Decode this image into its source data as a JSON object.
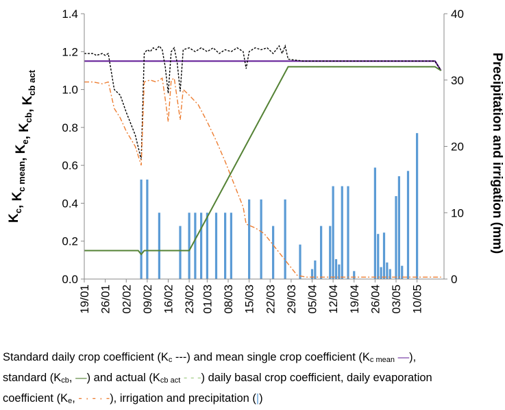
{
  "chart_data": {
    "type": "line",
    "y_label": [
      "K",
      {
        "sub": "c"
      },
      ", K",
      {
        "sub": "c mean"
      },
      ", K",
      {
        "sub": "e"
      },
      ", K",
      {
        "sub": "cb"
      },
      ", K",
      {
        "sub": "cb act"
      }
    ],
    "y2_label": "Precipitation and irrigation (mm)",
    "xlim": [
      "19/01",
      "19/05"
    ],
    "xticks": [
      "19/01",
      "26/01",
      "02/02",
      "09/02",
      "16/02",
      "23/02",
      "01/03",
      "08/03",
      "15/03",
      "22/03",
      "29/03",
      "05/04",
      "12/04",
      "19/04",
      "26/04",
      "03/05",
      "10/05"
    ],
    "ylim": [
      0,
      1.4
    ],
    "yticks": [
      {
        "value": 0,
        "label": "0.0"
      },
      0.2,
      0.4,
      0.6,
      0.8,
      {
        "value": 1,
        "label": "1.0"
      },
      1.2,
      1.4
    ],
    "y2lim": [
      0,
      40
    ],
    "y2ticks": [
      0,
      10,
      20,
      30,
      40
    ],
    "series": [
      {
        "type": "bar",
        "axis": "y2",
        "color": "#5b9bd5",
        "x": [
          "07/02",
          "09/02",
          "13/02",
          "20/02",
          "23/02",
          "25/02",
          "27/02",
          "01/03",
          "04/03",
          "07/03",
          "09/03",
          "15/03",
          "19/03",
          "23/03",
          "27/03",
          "01/04",
          "05/04",
          "06/04",
          "08/04",
          "11/04",
          "12/04",
          "13/04",
          "14/04",
          "15/04",
          "17/04",
          "19/04",
          "26/04",
          "27/04",
          "28/04",
          "29/04",
          "30/04",
          "01/05",
          "03/05",
          "04/05",
          "05/05",
          "07/05",
          "10/05"
        ],
        "values": [
          15,
          15,
          10,
          8,
          10,
          10,
          10,
          10,
          10,
          10,
          10,
          12,
          12,
          8,
          12,
          5.2,
          1.5,
          2.8,
          8,
          8,
          14,
          3,
          2.2,
          14,
          14,
          1.2,
          16.8,
          6.8,
          1.8,
          7,
          2.5,
          1.5,
          12.5,
          15.5,
          2,
          16.3,
          22
        ]
      },
      {
        "type": "line",
        "color": "#7030a0",
        "width": 2.2,
        "dash": "",
        "x": [
          "19/01",
          "16/05",
          "18/05"
        ],
        "values": [
          1.15,
          1.15,
          1.1
        ]
      },
      {
        "type": "line",
        "color": "#000000",
        "width": 1.4,
        "dash": "3 2",
        "x": [
          "19/01",
          "22/01",
          "23/01",
          "25/01",
          "26/01",
          "27/01",
          "29/01",
          "31/01",
          "02/02",
          "05/02",
          "07/02",
          "08/02",
          "09/02",
          "10/02",
          "11/02",
          "12/02",
          "13/02",
          "14/02",
          "15/02",
          "16/02",
          "17/02",
          "18/02",
          "19/02",
          "20/02",
          "21/02",
          "23/02",
          "25/02",
          "27/02",
          "01/03",
          "03/03",
          "05/03",
          "07/03",
          "09/03",
          "11/03",
          "13/03",
          "14/03",
          "15/03",
          "17/03",
          "19/03",
          "21/03",
          "23/03",
          "25/03",
          "26/03",
          "27/03",
          "28/03",
          "02/04",
          "16/05",
          "18/05"
        ],
        "values": [
          1.19,
          1.19,
          1.18,
          1.19,
          1.18,
          1.19,
          1.0,
          0.97,
          0.88,
          0.76,
          0.63,
          1.19,
          1.21,
          1.2,
          1.22,
          1.21,
          1.23,
          1.21,
          1.12,
          0.98,
          1.2,
          1.22,
          1.14,
          0.99,
          1.21,
          1.22,
          1.2,
          1.22,
          1.2,
          1.22,
          1.19,
          1.21,
          1.2,
          1.22,
          1.2,
          1.11,
          1.2,
          1.22,
          1.21,
          1.22,
          1.19,
          1.23,
          1.19,
          1.23,
          1.16,
          1.15,
          1.15,
          1.1
        ]
      },
      {
        "type": "line",
        "color": "#ed7d31",
        "width": 1.4,
        "dash": "7 3 2 3",
        "x": [
          "19/01",
          "22/01",
          "25/01",
          "27/01",
          "29/01",
          "31/01",
          "02/02",
          "05/02",
          "07/02",
          "08/02",
          "10/02",
          "12/02",
          "14/02",
          "15/02",
          "16/02",
          "17/02",
          "18/02",
          "19/02",
          "20/02",
          "21/02",
          "23/02",
          "26/02",
          "01/03",
          "04/03",
          "07/03",
          "10/03",
          "13/03",
          "14/03",
          "17/03",
          "20/03",
          "22/03",
          "25/03",
          "28/03",
          "31/03",
          "03/04",
          "16/05",
          "18/05"
        ],
        "values": [
          1.04,
          1.04,
          1.03,
          1.04,
          0.9,
          0.85,
          0.78,
          0.7,
          0.6,
          1.04,
          1.05,
          1.04,
          1.06,
          0.95,
          0.83,
          1.05,
          1.06,
          0.95,
          0.84,
          1.0,
          0.97,
          0.92,
          0.83,
          0.73,
          0.62,
          0.5,
          0.38,
          0.29,
          0.27,
          0.24,
          0.2,
          0.14,
          0.08,
          0.02,
          0.01,
          0.01,
          0.01
        ]
      },
      {
        "type": "line",
        "color": "#a9d18e",
        "width": 1.6,
        "dash": "5 3",
        "x": [
          "19/01",
          "06/02",
          "07/02",
          "08/02",
          "23/02",
          "28/03",
          "16/05",
          "18/05"
        ],
        "values": [
          0.15,
          0.15,
          0.13,
          0.15,
          0.15,
          1.12,
          1.12,
          1.1
        ]
      },
      {
        "type": "line",
        "color": "#548235",
        "width": 2,
        "dash": "",
        "x": [
          "19/01",
          "06/02",
          "07/02",
          "08/02",
          "23/02",
          "28/03",
          "16/05",
          "18/05"
        ],
        "values": [
          0.15,
          0.15,
          0.13,
          0.15,
          0.15,
          1.12,
          1.12,
          1.1
        ]
      }
    ],
    "caption": [
      [
        "Standard daily crop coefficient (K",
        {
          "sub": "c"
        },
        " ---) and mean single crop coefficient (K",
        {
          "sub": "c mean"
        },
        " ",
        {
          "text": "—",
          "color": "#7030a0"
        },
        "),"
      ],
      [
        "standard (K",
        {
          "sub": "cb"
        },
        ", ",
        {
          "text": "—",
          "color": "#548235"
        },
        ") and actual (K",
        {
          "sub": "cb act"
        },
        " ",
        {
          "text": "- - -",
          "color": "#a9d18e"
        },
        ") daily basal crop coefficient, daily evaporation"
      ],
      [
        "coefficient (K",
        {
          "sub": "e"
        },
        ", ",
        {
          "text": "- · - · -",
          "color": "#ed7d31"
        },
        "), irrigation and precipitation (",
        {
          "text": "|",
          "color": "#5b9bd5"
        },
        ")"
      ]
    ]
  }
}
